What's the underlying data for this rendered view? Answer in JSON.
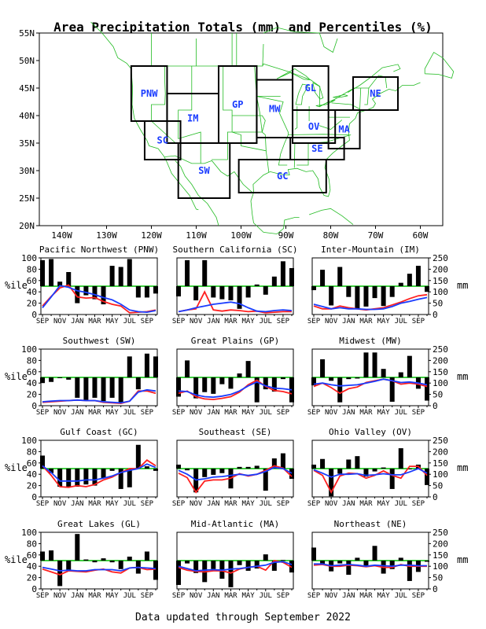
{
  "title": "Area Precipitation Totals (mm) and Percentiles (%)",
  "footer": "Data updated through September 2022",
  "map": {
    "lat_labels": [
      "55N",
      "50N",
      "45N",
      "40N",
      "35N",
      "30N",
      "25N",
      "20N"
    ],
    "lon_labels": [
      "140W",
      "130W",
      "120W",
      "110W",
      "100W",
      "90W",
      "80W",
      "70W",
      "60W"
    ],
    "regions": [
      {
        "code": "PNW",
        "lon": [
          -124.5,
          -116.5
        ],
        "lat": [
          39,
          49
        ]
      },
      {
        "code": "SC",
        "lon": [
          -121.5,
          -113.5
        ],
        "lat": [
          32,
          39
        ]
      },
      {
        "code": "IM",
        "lon": [
          -116.5,
          -105
        ],
        "lat": [
          35,
          44
        ]
      },
      {
        "code": "SW",
        "lon": [
          -114,
          -102.5
        ],
        "lat": [
          25,
          35
        ]
      },
      {
        "code": "GP",
        "lon": [
          -105,
          -96.5
        ],
        "lat": [
          35,
          49
        ]
      },
      {
        "code": "MW",
        "lon": [
          -96.5,
          -88.5
        ],
        "lat": [
          36,
          46.5
        ]
      },
      {
        "code": "GL",
        "lon": [
          -88.5,
          -80.5
        ],
        "lat": [
          41,
          49
        ]
      },
      {
        "code": "OV",
        "lon": [
          -88.5,
          -79
        ],
        "lat": [
          35,
          41
        ]
      },
      {
        "code": "MA",
        "lon": [
          -80.5,
          -73.5
        ],
        "lat": [
          34,
          41
        ]
      },
      {
        "code": "NE",
        "lon": [
          -75,
          -65
        ],
        "lat": [
          41,
          47
        ]
      },
      {
        "code": "SE",
        "lon": [
          -89,
          -77
        ],
        "lat": [
          32,
          36
        ]
      },
      {
        "code": "GC",
        "lon": [
          -100.5,
          -81
        ],
        "lat": [
          26,
          32
        ]
      }
    ]
  },
  "axes_common": {
    "x_ticks": [
      "SEP",
      "NOV",
      "JAN",
      "MAR",
      "MAY",
      "JUL",
      "SEP"
    ],
    "left_label": "%ile",
    "left_ticks": [
      0,
      20,
      40,
      60,
      80,
      100
    ],
    "right_label": "mm",
    "right_ticks": [
      0,
      50,
      100,
      150,
      200,
      250
    ]
  },
  "chart_data": [
    {
      "type": "bar",
      "title": "Pacific Northwest (PNW)",
      "pct": [
        96,
        98,
        58,
        75,
        20,
        34,
        27,
        18,
        86,
        84,
        98,
        30,
        30,
        37
      ],
      "red": [
        15,
        32,
        47,
        52,
        31,
        29,
        30,
        23,
        18,
        15,
        3,
        4,
        5,
        8
      ],
      "blue": [
        12,
        31,
        51,
        48,
        42,
        39,
        35,
        30,
        26,
        18,
        8,
        5,
        4,
        7
      ]
    },
    {
      "type": "bar",
      "title": "Southern California (SC)",
      "pct": [
        32,
        96,
        25,
        96,
        30,
        27,
        25,
        10,
        30,
        53,
        35,
        67,
        94,
        82
      ],
      "red": [
        5,
        8,
        10,
        40,
        8,
        6,
        8,
        7,
        5,
        6,
        3,
        4,
        5,
        5
      ],
      "blue": [
        5,
        8,
        12,
        15,
        18,
        20,
        22,
        19,
        12,
        6,
        5,
        7,
        8,
        7
      ]
    },
    {
      "type": "bar",
      "title": "Inter-Mountain (IM)",
      "pct": [
        43,
        79,
        16,
        84,
        31,
        10,
        14,
        29,
        15,
        31,
        56,
        72,
        86,
        40
      ],
      "red": [
        15,
        10,
        10,
        15,
        12,
        10,
        8,
        10,
        12,
        17,
        22,
        28,
        33,
        35
      ],
      "blue": [
        18,
        14,
        10,
        12,
        10,
        10,
        9,
        9,
        10,
        14,
        20,
        23,
        27,
        30
      ]
    },
    {
      "type": "bar",
      "title": "Southwest (SW)",
      "pct": [
        40,
        42,
        49,
        46,
        14,
        10,
        14,
        8,
        14,
        6,
        87,
        29,
        92,
        87
      ],
      "red": [
        6,
        7,
        8,
        9,
        10,
        9,
        9,
        6,
        5,
        4,
        8,
        26,
        26,
        22
      ],
      "blue": [
        7,
        8,
        9,
        9,
        10,
        9,
        9,
        7,
        6,
        5,
        8,
        24,
        28,
        26
      ]
    },
    {
      "type": "bar",
      "title": "Great Plains (GP)",
      "pct": [
        16,
        80,
        13,
        24,
        21,
        38,
        30,
        57,
        79,
        6,
        29,
        25,
        47,
        6
      ],
      "red": [
        22,
        26,
        16,
        12,
        11,
        13,
        16,
        24,
        37,
        45,
        34,
        27,
        25,
        21
      ],
      "blue": [
        26,
        25,
        19,
        16,
        15,
        17,
        20,
        26,
        35,
        42,
        35,
        31,
        30,
        28
      ]
    },
    {
      "type": "bar",
      "title": "Midwest (MW)",
      "pct": [
        36,
        82,
        44,
        6,
        47,
        48,
        94,
        94,
        65,
        7,
        59,
        88,
        30,
        9
      ],
      "red": [
        34,
        40,
        32,
        22,
        30,
        33,
        41,
        44,
        47,
        44,
        38,
        40,
        38,
        34
      ],
      "blue": [
        38,
        40,
        37,
        35,
        36,
        37,
        40,
        43,
        47,
        44,
        41,
        42,
        40,
        37
      ]
    },
    {
      "type": "bar",
      "title": "Gulf Coast (GC)",
      "pct": [
        73,
        42,
        18,
        18,
        18,
        22,
        20,
        33,
        46,
        14,
        17,
        92,
        54,
        46
      ],
      "red": [
        55,
        38,
        18,
        17,
        20,
        18,
        22,
        30,
        35,
        43,
        50,
        50,
        65,
        55
      ],
      "blue": [
        55,
        43,
        28,
        28,
        28,
        30,
        30,
        33,
        37,
        43,
        47,
        50,
        58,
        52
      ]
    },
    {
      "type": "bar",
      "title": "Southeast (SE)",
      "pct": [
        57,
        47,
        8,
        35,
        39,
        42,
        15,
        53,
        53,
        55,
        11,
        68,
        77,
        32
      ],
      "red": [
        42,
        34,
        8,
        28,
        30,
        30,
        33,
        41,
        37,
        40,
        47,
        55,
        51,
        36
      ],
      "blue": [
        47,
        40,
        30,
        32,
        35,
        36,
        38,
        40,
        38,
        40,
        45,
        52,
        50,
        42
      ]
    },
    {
      "type": "bar",
      "title": "Ohio Valley (OV)",
      "pct": [
        57,
        67,
        1,
        41,
        66,
        72,
        36,
        45,
        52,
        14,
        86,
        49,
        57,
        21
      ],
      "red": [
        47,
        38,
        8,
        37,
        42,
        41,
        33,
        38,
        46,
        38,
        33,
        54,
        54,
        38
      ],
      "blue": [
        48,
        42,
        35,
        40,
        40,
        41,
        38,
        39,
        41,
        39,
        39,
        44,
        50,
        42
      ]
    },
    {
      "type": "bar",
      "title": "Great Lakes (GL)",
      "pct": [
        66,
        68,
        5,
        34,
        97,
        52,
        47,
        54,
        47,
        35,
        57,
        27,
        66,
        16
      ],
      "red": [
        35,
        30,
        25,
        32,
        31,
        30,
        33,
        35,
        30,
        28,
        37,
        38,
        34,
        35
      ],
      "blue": [
        38,
        35,
        32,
        33,
        32,
        32,
        34,
        34,
        34,
        32,
        37,
        38,
        37,
        36
      ]
    },
    {
      "type": "bar",
      "title": "Mid-Atlantic (MA)",
      "pct": [
        7,
        45,
        28,
        12,
        35,
        18,
        3,
        42,
        32,
        36,
        61,
        32,
        51,
        29
      ],
      "red": [
        38,
        33,
        31,
        30,
        32,
        32,
        28,
        35,
        38,
        40,
        33,
        50,
        47,
        38
      ],
      "blue": [
        40,
        36,
        32,
        33,
        34,
        33,
        35,
        36,
        38,
        40,
        42,
        47,
        48,
        43
      ]
    },
    {
      "type": "bar",
      "title": "Northeast (NE)",
      "pct": [
        73,
        43,
        31,
        45,
        25,
        55,
        40,
        76,
        27,
        35,
        55,
        14,
        30,
        48
      ],
      "red": [
        42,
        43,
        40,
        40,
        42,
        41,
        39,
        41,
        38,
        38,
        43,
        40,
        40,
        40
      ],
      "blue": [
        44,
        44,
        41,
        42,
        43,
        42,
        40,
        42,
        41,
        40,
        42,
        42,
        41,
        41
      ]
    }
  ],
  "colors": {
    "bar": "#000000",
    "pct50": "#00c000",
    "red": "#ff2020",
    "blue": "#1a3cff",
    "map_lines": "#22bb22",
    "region_box": "#000000",
    "region_label": "#1a3cff"
  }
}
